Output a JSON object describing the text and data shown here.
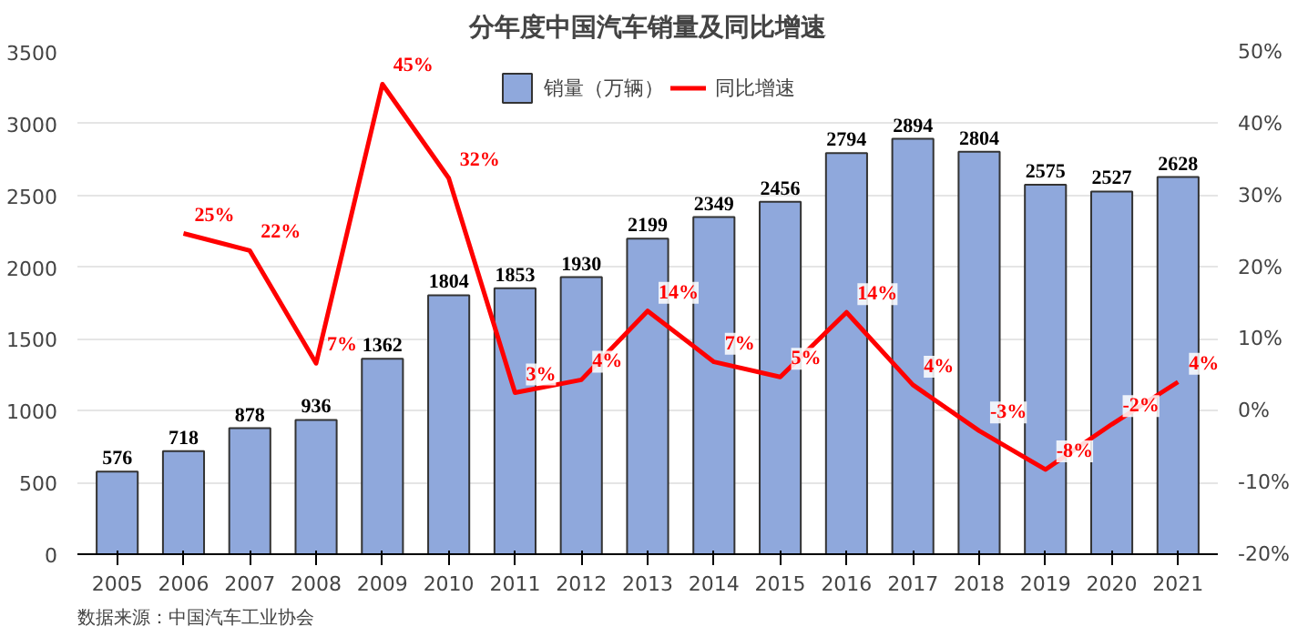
{
  "chart_data": {
    "type": "bar",
    "title": "分年度中国汽车销量及同比增速",
    "categories": [
      "2005",
      "2006",
      "2007",
      "2008",
      "2009",
      "2010",
      "2011",
      "2012",
      "2013",
      "2014",
      "2015",
      "2016",
      "2017",
      "2018",
      "2019",
      "2020",
      "2021"
    ],
    "series": [
      {
        "name": "销量（万辆）",
        "color": "#8fa8dc",
        "values": [
          576,
          718,
          878,
          936,
          1362,
          1804,
          1853,
          1930,
          2199,
          2349,
          2456,
          2794,
          2894,
          2804,
          2575,
          2527,
          2628
        ],
        "value_labels": [
          "576",
          "718",
          "878",
          "936",
          "1362",
          "1804",
          "1853",
          "1930",
          "2199",
          "2349",
          "2456",
          "2794",
          "2894",
          "2804",
          "2575",
          "2527",
          "2628"
        ]
      },
      {
        "name": "同比增速",
        "type": "line",
        "axis": "y2",
        "color": "#ff0000",
        "values": [
          null,
          24.7,
          22.3,
          6.6,
          45.5,
          32.4,
          2.5,
          4.3,
          13.9,
          6.8,
          4.7,
          13.7,
          3.6,
          -2.8,
          -8.2,
          -1.9,
          4.0
        ],
        "value_labels": [
          null,
          "25%",
          "22%",
          "7%",
          "45%",
          "32%",
          "3%",
          "4%",
          "14%",
          "7%",
          "5%",
          "14%",
          "4%",
          "-3%",
          "-8%",
          "-2%",
          "4%"
        ]
      }
    ],
    "ylim": [
      0,
      3500
    ],
    "yticks": [
      0,
      500,
      1000,
      1500,
      2000,
      2500,
      3000,
      3500
    ],
    "y2lim": [
      -20,
      50
    ],
    "y2ticks": [
      {
        "value": -20,
        "label": "-20%"
      },
      {
        "value": -10,
        "label": "-10%"
      },
      {
        "value": 0,
        "label": "0%"
      },
      {
        "value": 10,
        "label": "10%"
      },
      {
        "value": 20,
        "label": "20%"
      },
      {
        "value": 30,
        "label": "30%"
      },
      {
        "value": 40,
        "label": "40%"
      },
      {
        "value": 50,
        "label": "50%"
      }
    ],
    "grid": "y",
    "legend": "top",
    "line_style": "solid",
    "marker": "none",
    "annotations": [
      "数据来源：中国汽车工业协会"
    ]
  }
}
